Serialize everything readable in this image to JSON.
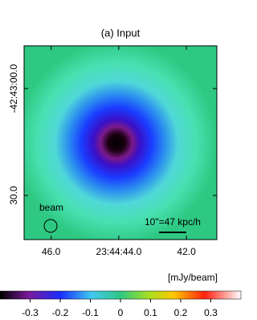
{
  "chart_data": {
    "type": "image",
    "title": "(a)  Input",
    "xticks": [
      {
        "value": 46,
        "label": "46.0"
      },
      {
        "value": 44,
        "label": "23:44:44.0"
      },
      {
        "value": 42,
        "label": "42.0"
      }
    ],
    "xlim": [
      46.8,
      41.1
    ],
    "yticks": [
      {
        "value": 0,
        "label": "-42:43:00.0"
      },
      {
        "value": 30,
        "label": "30.0"
      }
    ],
    "ylim": [
      42.4,
      -12
    ],
    "annotations": [
      "beam",
      "10\"=47 kpc/h"
    ],
    "colorbar": {
      "label": "[mJy/beam]",
      "clim": [
        -0.4,
        0.4
      ],
      "ticks": [
        -0.3,
        -0.2,
        -0.1,
        0,
        0.1,
        0.2,
        0.3
      ]
    }
  }
}
